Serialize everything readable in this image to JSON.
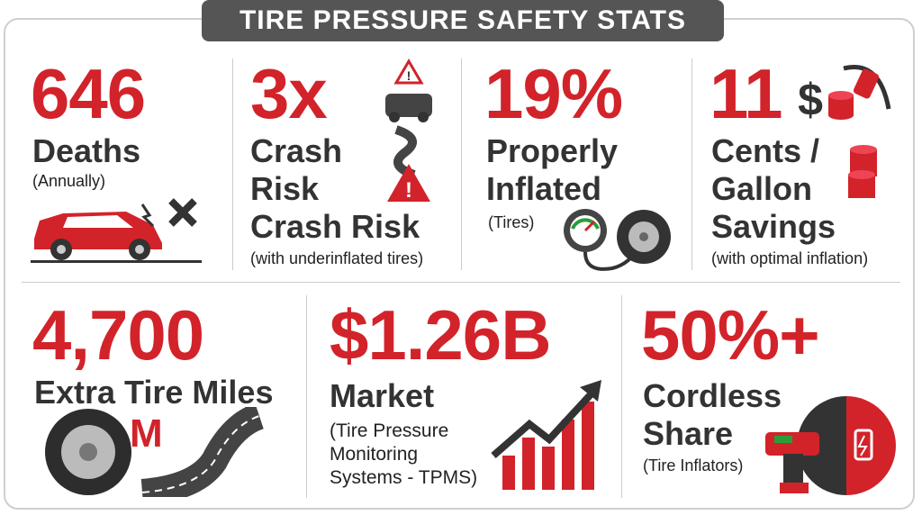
{
  "title": "TIRE PRESSURE SAFETY STATS",
  "stats": [
    {
      "number": "646",
      "label_lines": [
        "Deaths"
      ],
      "note": "(Annually)"
    },
    {
      "number": "3x",
      "label_lines": [
        "Crash",
        "Risk",
        "Crash Risk"
      ],
      "note": "(with underinflated tires)"
    },
    {
      "number": "19%",
      "label_lines": [
        "Properly",
        "Inflated"
      ],
      "note": "(Tires)"
    },
    {
      "number": "11",
      "label_lines": [
        "Cents /",
        "Gallon",
        "Savings"
      ],
      "note": "(with optimal inflation)"
    },
    {
      "number": "4,700",
      "label_lines": [
        "Extra Tire Miles"
      ],
      "icon_text": "M"
    },
    {
      "number": "$1.26B",
      "label_lines": [
        "Market"
      ],
      "note_lines": [
        "(Tire Pressure",
        "Monitoring",
        "Systems - TPMS)"
      ]
    },
    {
      "number": "50%+",
      "label_lines": [
        "Cordless",
        "Share"
      ],
      "note": "(Tire Inflators)"
    }
  ]
}
